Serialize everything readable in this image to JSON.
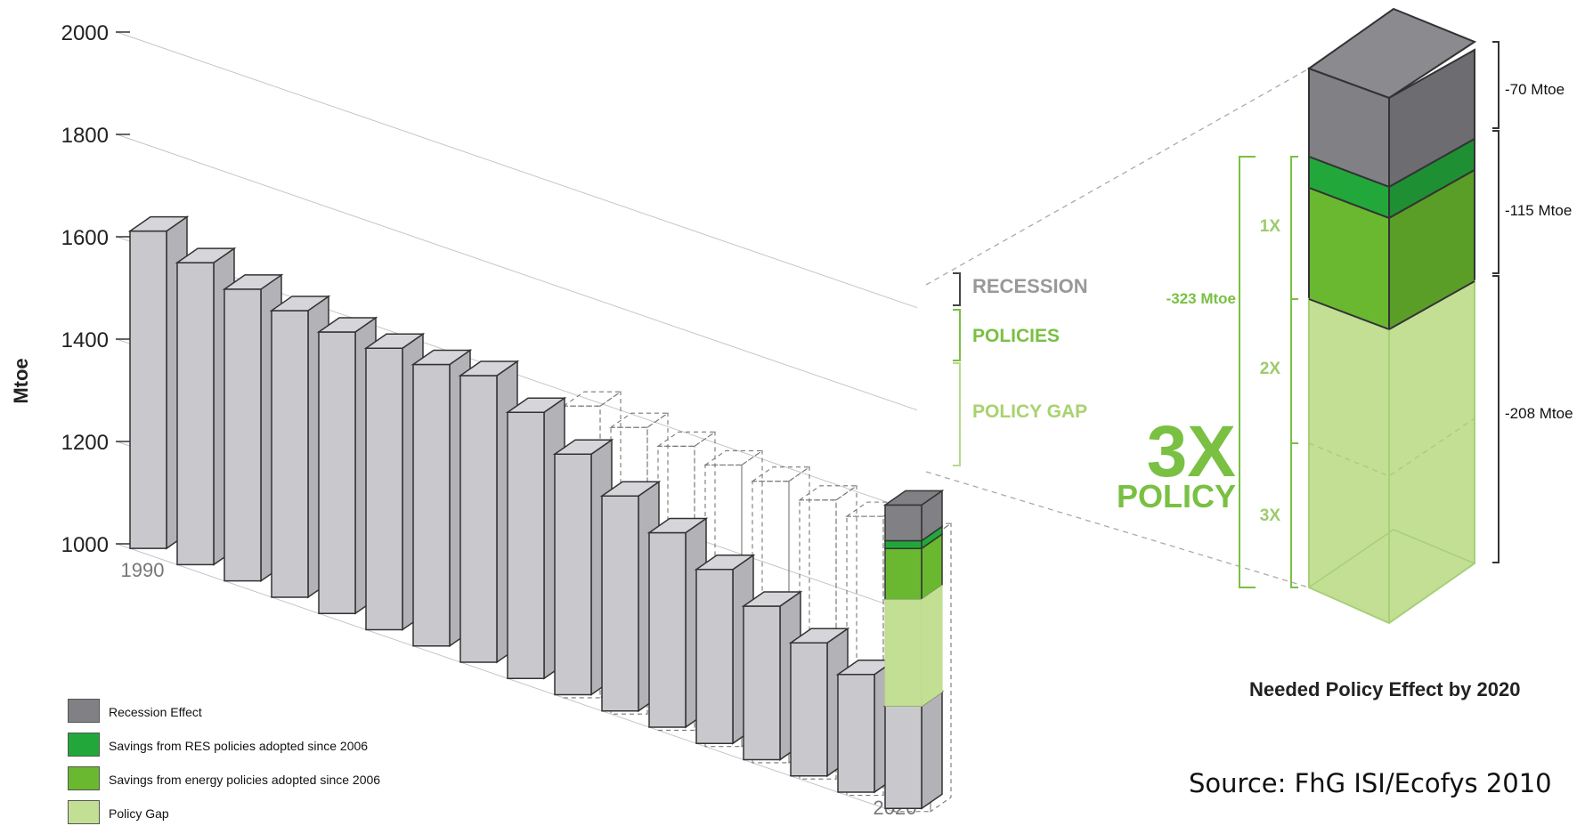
{
  "colors": {
    "recession": "#808085",
    "res": "#22a83a",
    "energy": "#6ab82f",
    "gap": "#c3df94",
    "bar": "#c9c9cd",
    "green_text": "#79c043"
  },
  "chart_data": {
    "type": "bar",
    "ylabel": "Mtoe",
    "ylim": [
      1000,
      2000
    ],
    "yticks": [
      "1000",
      "1200",
      "1400",
      "1600",
      "1800",
      "2000"
    ],
    "x_start_label": "1990",
    "x_end_label": "2020",
    "values": [
      1620,
      1590,
      1570,
      1560,
      1550,
      1550,
      1550,
      1560,
      1520,
      1470,
      1420,
      1380,
      1340,
      1300,
      1260,
      1230,
      1200
    ],
    "ghost_values": [
      1570,
      1560,
      1555,
      1550,
      1550,
      1545,
      1545,
      1535
    ],
    "stack_2020": [
      {
        "key": "recession",
        "value": 70
      },
      {
        "key": "res",
        "value": 15
      },
      {
        "key": "energy",
        "value": 100
      },
      {
        "key": "gap",
        "value": 208
      }
    ],
    "callouts": {
      "recession": "RECESSION",
      "policies": "POLICIES",
      "policy_gap": "POLICY GAP"
    },
    "right_panel": {
      "title": "Needed Policy Effect by 2020",
      "bracket_labels": [
        "-70 Mtoe",
        "-115 Mtoe",
        "-208 Mtoe"
      ],
      "total_label": "-323 Mtoe",
      "multiples": [
        "1X",
        "2X",
        "3X"
      ],
      "big_text": "3X",
      "big_subtext": "POLICY"
    }
  },
  "legend": [
    {
      "label": "Recession Effect",
      "color": "#808085"
    },
    {
      "label": "Savings from RES policies adopted since 2006",
      "color": "#22a83a"
    },
    {
      "label": "Savings from energy policies adopted since 2006",
      "color": "#6ab82f"
    },
    {
      "label": "Policy Gap",
      "color": "#c3df94"
    }
  ],
  "source": "Source: FhG ISI/Ecofys 2010"
}
